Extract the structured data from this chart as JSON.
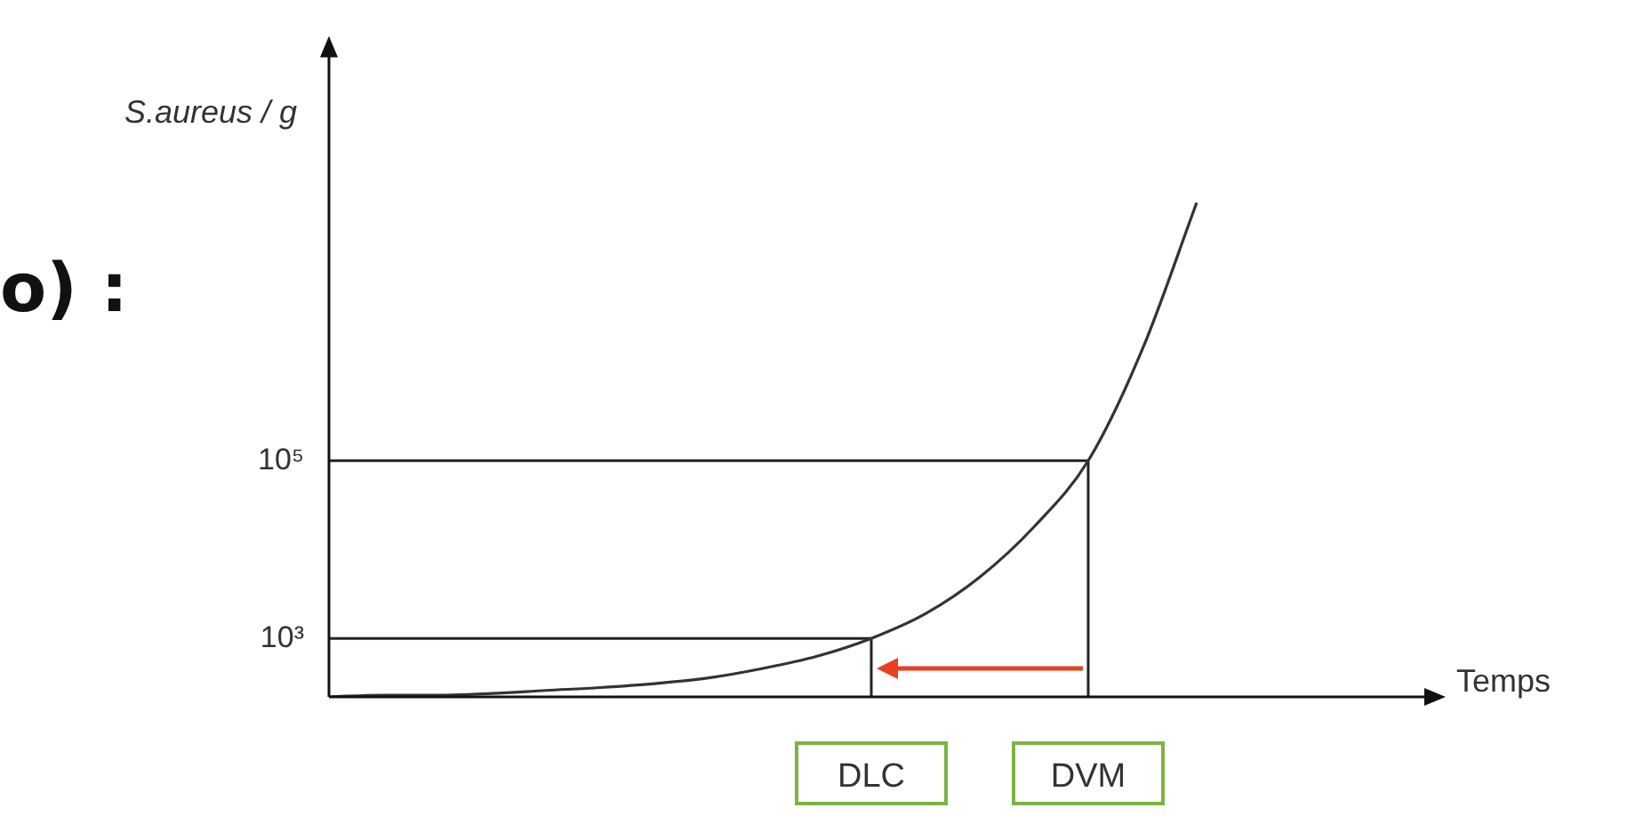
{
  "chart_data": {
    "type": "line",
    "ylabel": "S.aureus / g",
    "xlabel": "Temps",
    "categories": [
      null,
      null,
      null,
      null,
      null,
      null,
      null,
      null,
      null,
      null,
      "DLC",
      null,
      null,
      null,
      "DVM",
      null,
      null,
      null,
      null,
      null,
      null
    ],
    "values": [
      220,
      230,
      230,
      240,
      260,
      280,
      310,
      360,
      460,
      630,
      1000,
      1900,
      4900,
      18000,
      100000,
      1800000,
      80000000,
      null,
      null,
      null,
      null
    ],
    "color": "#333333",
    "log": true,
    "ylim": [
      220,
      5000000000
    ],
    "yticks": [
      {
        "value": 1000,
        "label": "10³"
      },
      {
        "value": 100000,
        "label": "10⁵"
      }
    ],
    "ref_lines": [
      {
        "axis": "y",
        "value": 1000
      },
      {
        "axis": "y",
        "value": 100000
      },
      {
        "axis": "x",
        "value": "DLC"
      },
      {
        "axis": "x",
        "value": "DVM"
      }
    ],
    "annotations": [
      "o) :"
    ],
    "grid": false,
    "legend": false,
    "marker": "none",
    "line_style": "solid"
  }
}
